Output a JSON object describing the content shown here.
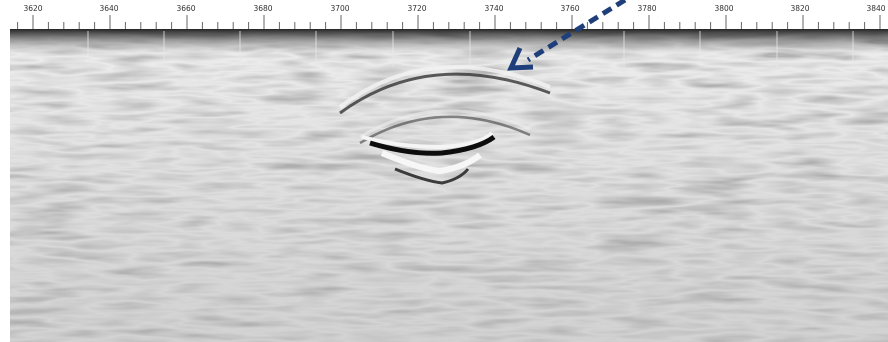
{
  "ruler": {
    "labels": [
      "3620",
      "3640",
      "3660",
      "3680",
      "3700",
      "3720",
      "3740",
      "3760",
      "3780",
      "3800",
      "3820",
      "3840"
    ]
  },
  "colors": {
    "arrow": "#1f3f7a",
    "ruler_line": "#666666",
    "background_gray": "#9c9c9c"
  },
  "icons": {
    "annotation_arrow": "dashed-arrow-icon"
  }
}
